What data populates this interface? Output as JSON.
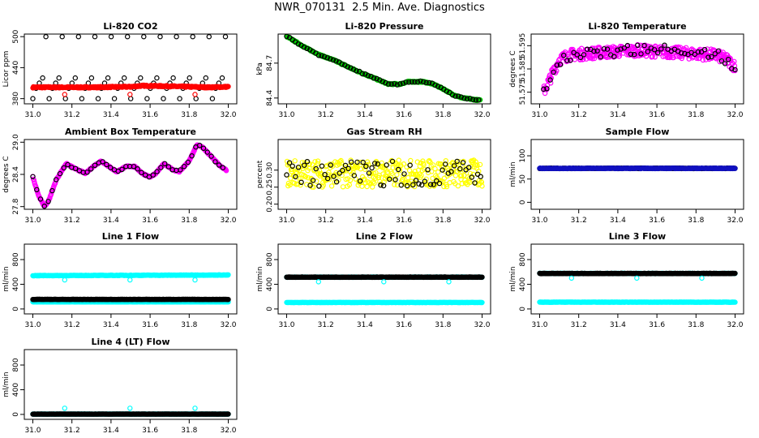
{
  "figure_title": "NWR_070131  2.5 Min. Ave. Diagnostics",
  "colors": {
    "black": "#000000",
    "red": "#ff0000",
    "green": "#00c800",
    "magenta": "#ff00ff",
    "yellow": "#ffff00",
    "cyan": "#00ffff",
    "blue": "#1010c0"
  },
  "chart_data": [
    {
      "id": "co2",
      "type": "scatter",
      "title": "Li-820 CO2",
      "xlabel": "",
      "ylabel": "Licor ppm",
      "xlim": [
        31.0,
        32.0
      ],
      "ylim": [
        370,
        505
      ],
      "xticks": [
        "31.0",
        "31.2",
        "31.4",
        "31.6",
        "31.8",
        "32.0"
      ],
      "yticks": [
        {
          "v": 380,
          "t": "380"
        },
        {
          "v": 440,
          "t": "440"
        },
        {
          "v": 500,
          "t": "500"
        }
      ],
      "series": [
        {
          "name": "standards (black)",
          "color": "#000000",
          "marker": "open",
          "kind": "steps",
          "x_start": 31.0,
          "x_end": 32.0,
          "step": 0.0167,
          "levels": [
            380,
            400,
            410,
            420,
            500
          ],
          "start_phase": 0
        },
        {
          "name": "ambient CO2",
          "color": "#ff0000",
          "marker": "filled",
          "kind": "dense",
          "x_start": 31.0,
          "x_end": 32.0,
          "n": 360,
          "knots": [
            [
              31.0,
              402
            ],
            [
              31.3,
              402
            ],
            [
              31.5,
              403
            ],
            [
              31.56,
              405
            ],
            [
              31.7,
              404
            ],
            [
              31.9,
              402
            ],
            [
              32.0,
              403
            ]
          ],
          "noise": 1.2
        },
        {
          "name": "red spikes",
          "color": "#ff0000",
          "marker": "open",
          "kind": "points",
          "x": [
            31.163,
            31.497,
            31.83
          ],
          "y": [
            388,
            388,
            388
          ]
        }
      ]
    },
    {
      "id": "pressure",
      "type": "scatter",
      "title": "Li-820 Pressure",
      "xlabel": "",
      "ylabel": "kPa",
      "xlim": [
        31.0,
        32.0
      ],
      "ylim": [
        84.35,
        84.95
      ],
      "xticks": [
        "31.0",
        "31.2",
        "31.4",
        "31.6",
        "31.8",
        "32.0"
      ],
      "yticks": [
        {
          "v": 84.4,
          "t": "84.4"
        },
        {
          "v": 84.7,
          "t": "84.7"
        }
      ],
      "series": [
        {
          "name": "pressure",
          "color": "#00c800",
          "marker": "open",
          "kind": "dense",
          "x_start": 31.0,
          "x_end": 31.99,
          "n": 400,
          "knots": [
            [
              31.0,
              84.93
            ],
            [
              31.05,
              84.88
            ],
            [
              31.1,
              84.83
            ],
            [
              31.17,
              84.77
            ],
            [
              31.25,
              84.72
            ],
            [
              31.35,
              84.64
            ],
            [
              31.45,
              84.57
            ],
            [
              31.52,
              84.52
            ],
            [
              31.58,
              84.52
            ],
            [
              31.62,
              84.54
            ],
            [
              31.7,
              84.54
            ],
            [
              31.75,
              84.52
            ],
            [
              31.8,
              84.48
            ],
            [
              31.85,
              84.43
            ],
            [
              31.9,
              84.4
            ],
            [
              31.99,
              84.38
            ]
          ],
          "noise": 0.005
        },
        {
          "name": "pressure (black)",
          "color": "#000000",
          "marker": "open",
          "kind": "sample_of",
          "ref": 0,
          "every": 6,
          "jitter": 0.004
        }
      ]
    },
    {
      "id": "temp",
      "type": "scatter",
      "title": "Li-820 Temperature",
      "xlabel": "",
      "ylabel": "degrees C",
      "xlim": [
        31.0,
        32.0
      ],
      "ylim": [
        51.57,
        51.6
      ],
      "xticks": [
        "31.0",
        "31.2",
        "31.4",
        "31.6",
        "31.8",
        "32.0"
      ],
      "yticks": [
        {
          "v": 51.575,
          "t": "51.575"
        },
        {
          "v": 51.585,
          "t": "51.585"
        },
        {
          "v": 51.595,
          "t": "51.595"
        }
      ],
      "series": [
        {
          "name": "cell temperature",
          "color": "#ff00ff",
          "marker": "open",
          "kind": "dense",
          "x_start": 31.02,
          "x_end": 32.0,
          "n": 400,
          "knots": [
            [
              31.02,
              51.575
            ],
            [
              31.06,
              51.582
            ],
            [
              31.1,
              51.589
            ],
            [
              31.15,
              51.591
            ],
            [
              31.3,
              51.592
            ],
            [
              31.5,
              51.593
            ],
            [
              31.7,
              51.592
            ],
            [
              31.9,
              51.591
            ],
            [
              31.96,
              51.589
            ],
            [
              32.0,
              51.586
            ]
          ],
          "noise": 0.0025
        },
        {
          "name": "cell temperature (black)",
          "color": "#000000",
          "marker": "open",
          "kind": "sample_of",
          "ref": 0,
          "every": 7,
          "jitter": 0.001
        }
      ]
    },
    {
      "id": "ambient",
      "type": "scatter",
      "title": "Ambient Box Temperature",
      "xlabel": "",
      "ylabel": "degrees C",
      "xlim": [
        31.0,
        32.0
      ],
      "ylim": [
        27.75,
        29.05
      ],
      "xticks": [
        "31.0",
        "31.2",
        "31.4",
        "31.6",
        "31.8",
        "32.0"
      ],
      "yticks": [
        {
          "v": 27.8,
          "t": "27.8"
        },
        {
          "v": 28.4,
          "t": "28.4"
        },
        {
          "v": 29.0,
          "t": "29.0"
        }
      ],
      "series": [
        {
          "name": "box temperature",
          "color": "#ff00ff",
          "marker": "open",
          "kind": "dense",
          "x_start": 31.0,
          "x_end": 31.99,
          "n": 400,
          "knots": [
            [
              31.0,
              28.35
            ],
            [
              31.03,
              28.0
            ],
            [
              31.06,
              27.8
            ],
            [
              31.08,
              27.9
            ],
            [
              31.12,
              28.3
            ],
            [
              31.17,
              28.6
            ],
            [
              31.22,
              28.5
            ],
            [
              31.27,
              28.42
            ],
            [
              31.31,
              28.55
            ],
            [
              31.35,
              28.65
            ],
            [
              31.4,
              28.52
            ],
            [
              31.43,
              28.45
            ],
            [
              31.48,
              28.55
            ],
            [
              31.52,
              28.55
            ],
            [
              31.56,
              28.42
            ],
            [
              31.6,
              28.35
            ],
            [
              31.63,
              28.42
            ],
            [
              31.67,
              28.6
            ],
            [
              31.72,
              28.48
            ],
            [
              31.75,
              28.45
            ],
            [
              31.8,
              28.65
            ],
            [
              31.84,
              28.95
            ],
            [
              31.87,
              28.9
            ],
            [
              31.92,
              28.7
            ],
            [
              31.96,
              28.55
            ],
            [
              31.99,
              28.48
            ]
          ],
          "noise": 0.01
        },
        {
          "name": "box temperature (black)",
          "color": "#000000",
          "marker": "open",
          "kind": "sample_of",
          "ref": 0,
          "every": 8,
          "jitter": 0.008
        }
      ]
    },
    {
      "id": "rh",
      "type": "scatter",
      "title": "Gas Stream RH",
      "xlabel": "",
      "ylabel": "percent",
      "xlim": [
        31.0,
        32.0
      ],
      "ylim": [
        0.185,
        0.39
      ],
      "xticks": [
        "31.0",
        "31.2",
        "31.4",
        "31.6",
        "31.8",
        "32.0"
      ],
      "yticks": [
        {
          "v": 0.2,
          "t": "0.20"
        },
        {
          "v": 0.25,
          "t": "0.25"
        },
        {
          "v": 0.3,
          "t": "0.30"
        }
      ],
      "series": [
        {
          "name": "relative humidity",
          "color": "#ffff00",
          "marker": "open",
          "kind": "dense",
          "x_start": 31.0,
          "x_end": 32.0,
          "n": 400,
          "knots": [
            [
              31.0,
              0.29
            ],
            [
              32.0,
              0.29
            ]
          ],
          "noise": 0.04
        },
        {
          "name": "relative humidity (black)",
          "color": "#000000",
          "marker": "open",
          "kind": "sample_of",
          "ref": 0,
          "every": 6,
          "jitter": 0.0
        }
      ]
    },
    {
      "id": "sample",
      "type": "scatter",
      "title": "Sample Flow",
      "xlabel": "",
      "ylabel": "ml/min",
      "xlim": [
        31.0,
        32.0
      ],
      "ylim": [
        -15,
        135
      ],
      "xticks": [
        "31.0",
        "31.2",
        "31.4",
        "31.6",
        "31.8",
        "32.0"
      ],
      "yticks": [
        {
          "v": 0,
          "t": "0"
        },
        {
          "v": 50,
          "t": "50"
        },
        {
          "v": 100,
          "t": "100"
        }
      ],
      "series": [
        {
          "name": "sample flow",
          "color": "#000000",
          "marker": "open",
          "kind": "dense",
          "x_start": 31.0,
          "x_end": 32.0,
          "n": 300,
          "knots": [
            [
              31.0,
              73
            ],
            [
              32.0,
              73
            ]
          ],
          "noise": 0.6
        },
        {
          "name": "sample flow (blue)",
          "color": "#1010c0",
          "marker": "filled",
          "kind": "dense",
          "x_start": 31.0,
          "x_end": 32.0,
          "n": 300,
          "knots": [
            [
              31.0,
              73
            ],
            [
              32.0,
              73
            ]
          ],
          "noise": 0.6
        }
      ]
    },
    {
      "id": "line1",
      "type": "scatter",
      "title": "Line 1 Flow",
      "xlabel": "",
      "ylabel": "ml/min",
      "xlim": [
        31.0,
        32.0
      ],
      "ylim": [
        -80,
        1050
      ],
      "xticks": [
        "31.0",
        "31.2",
        "31.4",
        "31.6",
        "31.8",
        "32.0"
      ],
      "yticks": [
        {
          "v": 0,
          "t": "0"
        },
        {
          "v": 400,
          "t": "400"
        },
        {
          "v": 800,
          "t": "800"
        }
      ],
      "series": [
        {
          "name": "line 1 high",
          "color": "#00ffff",
          "marker": "filled",
          "kind": "dense",
          "x_start": 31.0,
          "x_end": 32.0,
          "n": 300,
          "knots": [
            [
              31.0,
              540
            ],
            [
              32.0,
              550
            ]
          ],
          "noise": 4
        },
        {
          "name": "line 1 low",
          "color": "#00ffff",
          "marker": "filled",
          "kind": "dense",
          "x_start": 31.0,
          "x_end": 32.0,
          "n": 300,
          "knots": [
            [
              31.0,
              115
            ],
            [
              32.0,
              115
            ]
          ],
          "noise": 2
        },
        {
          "name": "line 1 (black)",
          "color": "#000000",
          "marker": "open",
          "kind": "dense",
          "x_start": 31.0,
          "x_end": 32.0,
          "n": 300,
          "knots": [
            [
              31.0,
              155
            ],
            [
              32.0,
              155
            ]
          ],
          "noise": 2
        },
        {
          "name": "line 1 dips",
          "color": "#00ffff",
          "marker": "open",
          "kind": "points",
          "x": [
            31.163,
            31.497,
            31.83
          ],
          "y": [
            470,
            470,
            470
          ]
        }
      ]
    },
    {
      "id": "line2",
      "type": "scatter",
      "title": "Line 2 Flow",
      "xlabel": "",
      "ylabel": "ml/min",
      "xlim": [
        31.0,
        32.0
      ],
      "ylim": [
        -80,
        1050
      ],
      "xticks": [
        "31.0",
        "31.2",
        "31.4",
        "31.6",
        "31.8",
        "32.0"
      ],
      "yticks": [
        {
          "v": 0,
          "t": "0"
        },
        {
          "v": 400,
          "t": "400"
        },
        {
          "v": 800,
          "t": "800"
        }
      ],
      "series": [
        {
          "name": "line 2 high",
          "color": "#00ffff",
          "marker": "filled",
          "kind": "dense",
          "x_start": 31.0,
          "x_end": 32.0,
          "n": 300,
          "knots": [
            [
              31.0,
              515
            ],
            [
              32.0,
              515
            ]
          ],
          "noise": 3
        },
        {
          "name": "line 2 (black)",
          "color": "#000000",
          "marker": "open",
          "kind": "dense",
          "x_start": 31.0,
          "x_end": 32.0,
          "n": 300,
          "knots": [
            [
              31.0,
              515
            ],
            [
              32.0,
              515
            ]
          ],
          "noise": 3
        },
        {
          "name": "line 2 low",
          "color": "#00ffff",
          "marker": "filled",
          "kind": "dense",
          "x_start": 31.0,
          "x_end": 32.0,
          "n": 300,
          "knots": [
            [
              31.0,
              105
            ],
            [
              32.0,
              105
            ]
          ],
          "noise": 2
        },
        {
          "name": "line 2 dips",
          "color": "#00ffff",
          "marker": "open",
          "kind": "points",
          "x": [
            31.163,
            31.497,
            31.83
          ],
          "y": [
            440,
            440,
            440
          ]
        }
      ]
    },
    {
      "id": "line3",
      "type": "scatter",
      "title": "Line 3 Flow",
      "xlabel": "",
      "ylabel": "ml/min",
      "xlim": [
        31.0,
        32.0
      ],
      "ylim": [
        -80,
        1050
      ],
      "xticks": [
        "31.0",
        "31.2",
        "31.4",
        "31.6",
        "31.8",
        "32.0"
      ],
      "yticks": [
        {
          "v": 0,
          "t": "0"
        },
        {
          "v": 400,
          "t": "400"
        },
        {
          "v": 800,
          "t": "800"
        }
      ],
      "series": [
        {
          "name": "line 3 high",
          "color": "#00ffff",
          "marker": "filled",
          "kind": "dense",
          "x_start": 31.0,
          "x_end": 32.0,
          "n": 300,
          "knots": [
            [
              31.0,
              575
            ],
            [
              32.0,
              575
            ]
          ],
          "noise": 3
        },
        {
          "name": "line 3 (black)",
          "color": "#000000",
          "marker": "open",
          "kind": "dense",
          "x_start": 31.0,
          "x_end": 32.0,
          "n": 300,
          "knots": [
            [
              31.0,
              575
            ],
            [
              32.0,
              575
            ]
          ],
          "noise": 3
        },
        {
          "name": "line 3 low",
          "color": "#00ffff",
          "marker": "filled",
          "kind": "dense",
          "x_start": 31.0,
          "x_end": 32.0,
          "n": 300,
          "knots": [
            [
              31.0,
              110
            ],
            [
              32.0,
              110
            ]
          ],
          "noise": 2
        },
        {
          "name": "line 3 dips",
          "color": "#00ffff",
          "marker": "open",
          "kind": "points",
          "x": [
            31.163,
            31.497,
            31.83
          ],
          "y": [
            500,
            500,
            500
          ]
        }
      ]
    },
    {
      "id": "line4",
      "type": "scatter",
      "title": "Line 4 (LT) Flow",
      "xlabel": "",
      "ylabel": "ml/min",
      "xlim": [
        31.0,
        32.0
      ],
      "ylim": [
        -80,
        1050
      ],
      "xticks": [
        "31.0",
        "31.2",
        "31.4",
        "31.6",
        "31.8",
        "32.0"
      ],
      "yticks": [
        {
          "v": 0,
          "t": "0"
        },
        {
          "v": 400,
          "t": "400"
        },
        {
          "v": 800,
          "t": "800"
        }
      ],
      "series": [
        {
          "name": "line 4 (cyan)",
          "color": "#00ffff",
          "marker": "filled",
          "kind": "dense",
          "x_start": 31.0,
          "x_end": 32.0,
          "n": 300,
          "knots": [
            [
              31.0,
              5
            ],
            [
              32.0,
              5
            ]
          ],
          "noise": 1
        },
        {
          "name": "line 4 (black)",
          "color": "#000000",
          "marker": "open",
          "kind": "dense",
          "x_start": 31.0,
          "x_end": 32.0,
          "n": 300,
          "knots": [
            [
              31.0,
              5
            ],
            [
              32.0,
              5
            ]
          ],
          "noise": 1
        },
        {
          "name": "line 4 spikes",
          "color": "#00ffff",
          "marker": "open",
          "kind": "points",
          "x": [
            31.163,
            31.497,
            31.83
          ],
          "y": [
            100,
            100,
            100
          ]
        }
      ]
    }
  ]
}
